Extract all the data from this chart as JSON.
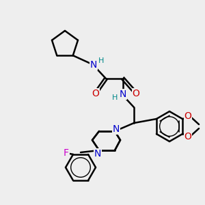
{
  "bg_color": "#eeeeee",
  "atom_colors": {
    "C": "#000000",
    "N": "#0000cc",
    "O": "#cc0000",
    "F": "#cc00cc",
    "H": "#008888"
  },
  "bond_color": "#000000",
  "bond_width": 1.8,
  "figsize": [
    3.0,
    3.0
  ],
  "dpi": 100
}
